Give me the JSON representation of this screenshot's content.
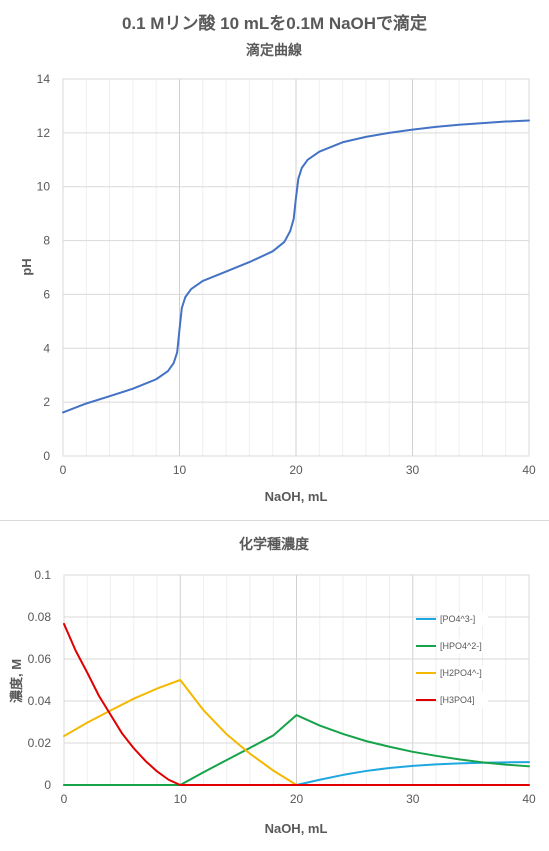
{
  "page": {
    "title": "0.1 Mリン酸 10 mLを0.1M NaOHで滴定"
  },
  "chart_data": [
    {
      "type": "line",
      "title": "滴定曲線",
      "xlabel": "NaOH, mL",
      "ylabel": "pH",
      "xlim": [
        0,
        40
      ],
      "ylim": [
        0,
        14
      ],
      "x_ticks": [
        0,
        10,
        20,
        30,
        40
      ],
      "y_ticks": [
        0,
        2,
        4,
        6,
        8,
        10,
        12,
        14
      ],
      "grid": true,
      "legend": "none",
      "series": [
        {
          "color": "#4472c4",
          "x": [
            0,
            2,
            4,
            6,
            8,
            9,
            9.5,
            9.8,
            10,
            10.2,
            10.5,
            11,
            12,
            14,
            16,
            18,
            19,
            19.5,
            19.8,
            20,
            20.2,
            20.5,
            21,
            22,
            24,
            26,
            28,
            30,
            32,
            34,
            36,
            38,
            40
          ],
          "y": [
            1.62,
            1.95,
            2.22,
            2.5,
            2.85,
            3.15,
            3.45,
            3.85,
            4.7,
            5.5,
            5.9,
            6.2,
            6.5,
            6.85,
            7.2,
            7.6,
            7.95,
            8.35,
            8.8,
            9.6,
            10.3,
            10.7,
            11.0,
            11.3,
            11.65,
            11.85,
            12.0,
            12.12,
            12.22,
            12.3,
            12.36,
            12.42,
            12.46
          ]
        }
      ]
    },
    {
      "type": "line",
      "title": "化学種濃度",
      "xlabel": "NaOH, mL",
      "ylabel": "濃度, M",
      "xlim": [
        0,
        40
      ],
      "ylim": [
        0,
        0.1
      ],
      "x_ticks": [
        0,
        10,
        20,
        30,
        40
      ],
      "y_ticks": [
        0,
        0.02,
        0.04,
        0.06,
        0.08,
        0.1
      ],
      "y_tick_labels": [
        "0",
        "0.02",
        "0.04",
        "0.06",
        "0.08",
        "0.1"
      ],
      "grid": true,
      "legend": "right",
      "series": [
        {
          "name": "[PO4^3-]",
          "color": "#1fa7e0",
          "x": [
            0,
            10,
            20,
            22,
            24,
            26,
            28,
            30,
            32,
            34,
            36,
            38,
            40
          ],
          "y": [
            0,
            0,
            0,
            0.0025,
            0.0048,
            0.0067,
            0.0081,
            0.0091,
            0.0098,
            0.0103,
            0.0106,
            0.0108,
            0.0109
          ]
        },
        {
          "name": "[HPO4^2-]",
          "color": "#16a34a",
          "x": [
            0,
            10,
            12,
            14,
            16,
            18,
            20,
            22,
            24,
            26,
            28,
            30,
            32,
            34,
            36,
            38,
            40
          ],
          "y": [
            0,
            0,
            0.0061,
            0.0119,
            0.0177,
            0.0236,
            0.0333,
            0.0283,
            0.0243,
            0.0209,
            0.0182,
            0.0158,
            0.0139,
            0.0122,
            0.0108,
            0.0097,
            0.0089
          ]
        },
        {
          "name": "[H2PO4^-]",
          "color": "#f5b800",
          "x": [
            0,
            2,
            4,
            6,
            8,
            10,
            12,
            14,
            16,
            18,
            20
          ],
          "y": [
            0.0233,
            0.0297,
            0.0355,
            0.0411,
            0.0459,
            0.05,
            0.0356,
            0.0241,
            0.0149,
            0.0069,
            0
          ]
        },
        {
          "name": "[H3PO4]",
          "color": "#e00000",
          "x": [
            0,
            1,
            2,
            3,
            4,
            5,
            6,
            7,
            8,
            9,
            10,
            20,
            30,
            40
          ],
          "y": [
            0.0767,
            0.064,
            0.0535,
            0.0425,
            0.0335,
            0.0245,
            0.0175,
            0.0115,
            0.0065,
            0.0025,
            0,
            0,
            0,
            0
          ]
        }
      ]
    }
  ]
}
